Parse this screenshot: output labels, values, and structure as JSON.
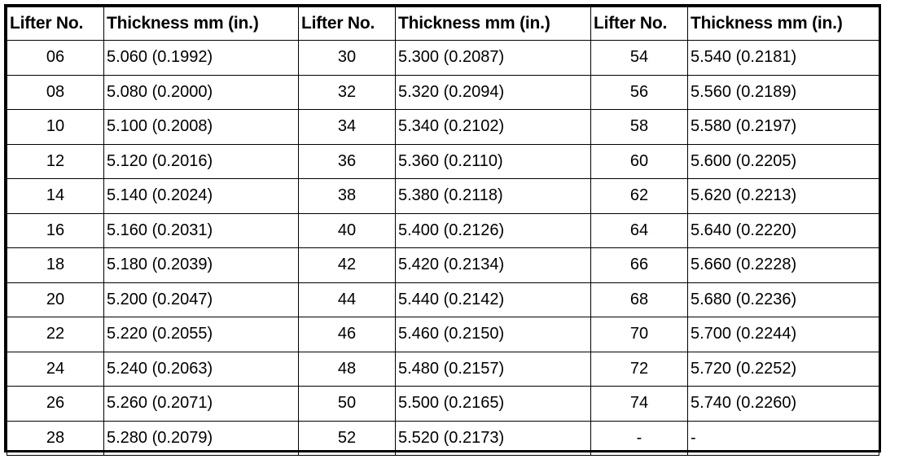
{
  "headers": [
    "Lifter No.",
    "Thickness mm (in.)",
    "Lifter No.",
    "Thickness mm (in.)",
    "Lifter No.",
    "Thickness mm (in.)"
  ],
  "rows": [
    [
      "06",
      "5.060 (0.1992)",
      "30",
      "5.300 (0.2087)",
      "54",
      "5.540 (0.2181)"
    ],
    [
      "08",
      "5.080 (0.2000)",
      "32",
      "5.320 (0.2094)",
      "56",
      "5.560 (0.2189)"
    ],
    [
      "10",
      "5.100 (0.2008)",
      "34",
      "5.340 (0.2102)",
      "58",
      "5.580 (0.2197)"
    ],
    [
      "12",
      "5.120 (0.2016)",
      "36",
      "5.360 (0.2110)",
      "60",
      "5.600 (0.2205)"
    ],
    [
      "14",
      "5.140 (0.2024)",
      "38",
      "5.380 (0.2118)",
      "62",
      "5.620 (0.2213)"
    ],
    [
      "16",
      "5.160 (0.2031)",
      "40",
      "5.400 (0.2126)",
      "64",
      "5.640 (0.2220)"
    ],
    [
      "18",
      "5.180 (0.2039)",
      "42",
      "5.420 (0.2134)",
      "66",
      "5.660 (0.2228)"
    ],
    [
      "20",
      "5.200 (0.2047)",
      "44",
      "5.440 (0.2142)",
      "68",
      "5.680 (0.2236)"
    ],
    [
      "22",
      "5.220 (0.2055)",
      "46",
      "5.460 (0.2150)",
      "70",
      "5.700 (0.2244)"
    ],
    [
      "24",
      "5.240 (0.2063)",
      "48",
      "5.480 (0.2157)",
      "72",
      "5.720 (0.2252)"
    ],
    [
      "26",
      "5.260 (0.2071)",
      "50",
      "5.500 (0.2165)",
      "74",
      "5.740 (0.2260)"
    ],
    [
      "28",
      "5.280 (0.2079)",
      "52",
      "5.520 (0.2173)",
      "-",
      "-"
    ]
  ]
}
